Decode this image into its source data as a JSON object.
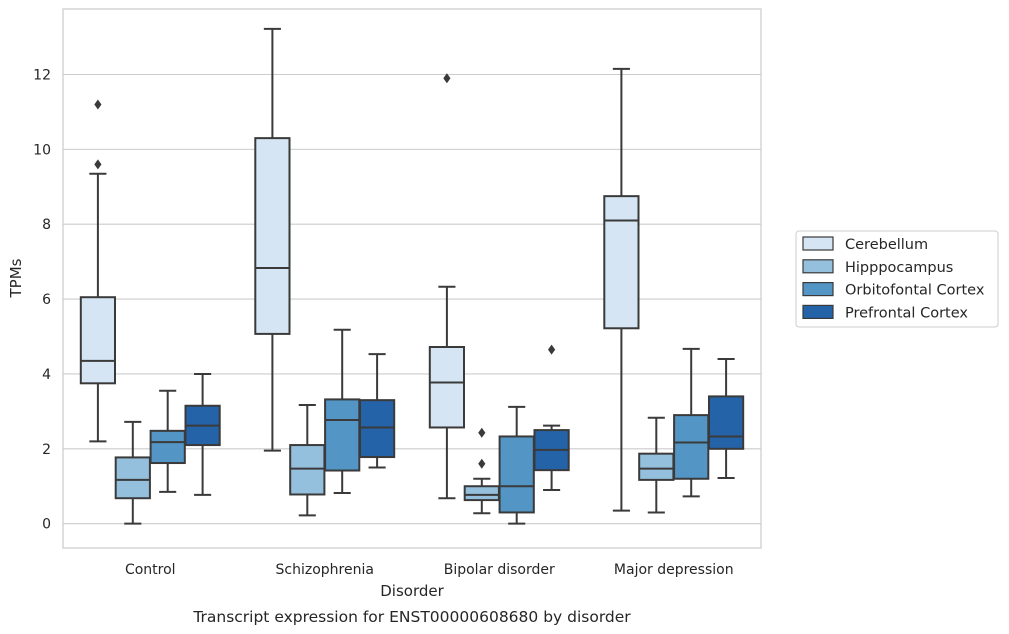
{
  "chart_data": {
    "type": "box",
    "ylabel": "TPMs",
    "xlabel": "Disorder",
    "caption": "Transcript expression for ENST00000608680 by disorder",
    "ylim": [
      -0.65,
      13.75
    ],
    "yticks": [
      0,
      2,
      4,
      6,
      8,
      10,
      12
    ],
    "grid": "horizontal",
    "legend_position": "outside-right",
    "categories": [
      "Control",
      "Schizophrenia",
      "Bipolar disorder",
      "Major depression"
    ],
    "series": [
      {
        "name": "Cerebellum",
        "color": "#d6e5f4",
        "boxes": [
          {
            "whislo": 2.2,
            "q1": 3.75,
            "med": 4.35,
            "q3": 6.05,
            "whishi": 9.35,
            "fliers": [
              9.6,
              11.2
            ]
          },
          {
            "whislo": 1.95,
            "q1": 5.07,
            "med": 6.83,
            "q3": 10.3,
            "whishi": 13.22,
            "fliers": []
          },
          {
            "whislo": 0.68,
            "q1": 2.57,
            "med": 3.77,
            "q3": 4.72,
            "whishi": 6.33,
            "fliers": [
              11.9
            ]
          },
          {
            "whislo": 0.35,
            "q1": 5.22,
            "med": 8.1,
            "q3": 8.75,
            "whishi": 12.15,
            "fliers": []
          }
        ]
      },
      {
        "name": "Hipppocampus",
        "color": "#95c0dd",
        "boxes": [
          {
            "whislo": 0.0,
            "q1": 0.68,
            "med": 1.17,
            "q3": 1.77,
            "whishi": 2.72,
            "fliers": []
          },
          {
            "whislo": 0.22,
            "q1": 0.78,
            "med": 1.47,
            "q3": 2.1,
            "whishi": 3.17,
            "fliers": []
          },
          {
            "whislo": 0.28,
            "q1": 0.63,
            "med": 0.77,
            "q3": 1.0,
            "whishi": 1.2,
            "fliers": [
              1.6,
              2.43
            ]
          },
          {
            "whislo": 0.3,
            "q1": 1.17,
            "med": 1.47,
            "q3": 1.87,
            "whishi": 2.83,
            "fliers": []
          }
        ]
      },
      {
        "name": "Orbitofontal Cortex",
        "color": "#5396c5",
        "boxes": [
          {
            "whislo": 0.85,
            "q1": 1.62,
            "med": 2.18,
            "q3": 2.48,
            "whishi": 3.55,
            "fliers": []
          },
          {
            "whislo": 0.82,
            "q1": 1.42,
            "med": 2.77,
            "q3": 3.32,
            "whishi": 5.18,
            "fliers": []
          },
          {
            "whislo": 0.0,
            "q1": 0.3,
            "med": 1.0,
            "q3": 2.33,
            "whishi": 3.12,
            "fliers": []
          },
          {
            "whislo": 0.73,
            "q1": 1.2,
            "med": 2.17,
            "q3": 2.9,
            "whishi": 4.67,
            "fliers": []
          }
        ]
      },
      {
        "name": "Prefrontal Cortex",
        "color": "#2563a9",
        "boxes": [
          {
            "whislo": 0.77,
            "q1": 2.1,
            "med": 2.62,
            "q3": 3.15,
            "whishi": 4.0,
            "fliers": []
          },
          {
            "whislo": 1.5,
            "q1": 1.78,
            "med": 2.57,
            "q3": 3.3,
            "whishi": 4.53,
            "fliers": []
          },
          {
            "whislo": 0.9,
            "q1": 1.43,
            "med": 1.97,
            "q3": 2.5,
            "whishi": 2.62,
            "fliers": [
              4.65
            ]
          },
          {
            "whislo": 1.22,
            "q1": 2.0,
            "med": 2.33,
            "q3": 3.4,
            "whishi": 4.4,
            "fliers": []
          }
        ]
      }
    ]
  }
}
